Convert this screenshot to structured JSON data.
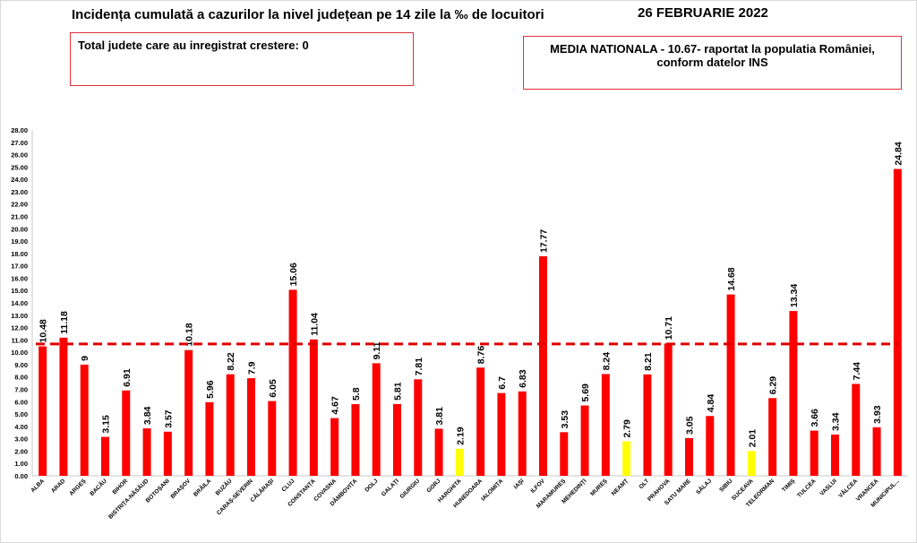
{
  "header": {
    "title": "Incidența cumulată a cazurilor la nivel județean pe 14 zile la ‰ de locuitori",
    "date": "26 FEBRUARIE 2022"
  },
  "info_left": {
    "text": "Total judete care au inregistrat crestere: 0"
  },
  "info_right": {
    "line1": "MEDIA NATIONALA - 10.67-  raportat la populatia României,",
    "line2": "conform datelor INS"
  },
  "colors": {
    "bar_default": "#ff0000",
    "bar_highlight": "#ffff00",
    "reference_line": "#e00000",
    "box_border": "#e0303a"
  },
  "chart_data": {
    "type": "bar",
    "title": "Incidența cumulată a cazurilor la nivel județean pe 14 zile la ‰ de locuitori",
    "categories": [
      "ALBA",
      "ARAD",
      "ARGEȘ",
      "BACĂU",
      "BIHOR",
      "BISTRIȚA-NĂSĂUD",
      "BOTOȘANI",
      "BRAȘOV",
      "BRĂILA",
      "BUZĂU",
      "CARAȘ-SEVERIN",
      "CĂLĂRAȘI",
      "CLUJ",
      "CONSTANȚA",
      "COVASNA",
      "DÂMBOVIȚA",
      "DOLJ",
      "GALAȚI",
      "GIURGIU",
      "GORJ",
      "HARGHITA",
      "HUNEDOARA",
      "IALOMIȚA",
      "IAȘI",
      "ILFOV",
      "MARAMUREȘ",
      "MEHEDINȚI",
      "MUREȘ",
      "NEAMȚ",
      "OLT",
      "PRAHOVA",
      "SATU MARE",
      "SĂLAJ",
      "SIBIU",
      "SUCEAVA",
      "TELEORMAN",
      "TIMIȘ",
      "TULCEA",
      "VASLUI",
      "VÂLCEA",
      "VRANCEA",
      "MUNICIPUL..."
    ],
    "values": [
      10.48,
      11.18,
      9,
      3.15,
      6.91,
      3.84,
      3.57,
      10.18,
      5.96,
      8.22,
      7.9,
      6.05,
      15.06,
      11.04,
      4.67,
      5.8,
      9.11,
      5.81,
      7.81,
      3.81,
      2.19,
      8.76,
      6.7,
      6.83,
      17.77,
      3.53,
      5.69,
      8.24,
      2.79,
      8.21,
      10.71,
      3.05,
      4.84,
      14.68,
      2.01,
      6.29,
      13.34,
      3.66,
      3.34,
      7.44,
      3.93,
      24.84
    ],
    "value_labels": [
      "10.48",
      "11.18",
      "9",
      "3.15",
      "6.91",
      "3.84",
      "3.57",
      "10.18",
      "5.96",
      "8.22",
      "7.9",
      "6.05",
      "15.06",
      "11.04",
      "4.67",
      "5.8",
      "9.11",
      "5.81",
      "7.81",
      "3.81",
      "2.19",
      "8.76",
      "6.7",
      "6.83",
      "17.77",
      "3.53",
      "5.69",
      "8.24",
      "2.79",
      "8.21",
      "10.71",
      "3.05",
      "4.84",
      "14.68",
      "2.01",
      "6.29",
      "13.34",
      "3.66",
      "3.34",
      "7.44",
      "3.93",
      "24.84"
    ],
    "highlighted": [
      "HARGHITA",
      "NEAMȚ",
      "SUCEAVA"
    ],
    "reference_line": {
      "value": 10.67,
      "style": "dashed"
    },
    "ylim": [
      0,
      28
    ],
    "y_ticks": [
      "0.00",
      "1.00",
      "2.00",
      "3.00",
      "4.00",
      "5.00",
      "6.00",
      "7.00",
      "8.00",
      "9.00",
      "10.00",
      "11.00",
      "12.00",
      "13.00",
      "14.00",
      "15.00",
      "16.00",
      "17.00",
      "18.00",
      "19.00",
      "20.00",
      "21.00",
      "22.00",
      "23.00",
      "24.00",
      "25.00",
      "26.00",
      "27.00",
      "28.00"
    ],
    "xlabel": "",
    "ylabel": "",
    "grid": false
  }
}
